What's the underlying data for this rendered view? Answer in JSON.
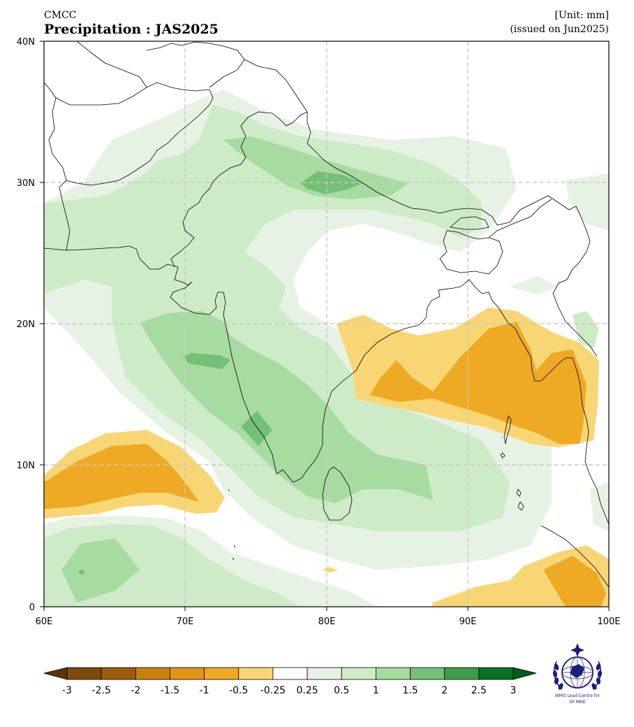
{
  "header": {
    "source": "CMCC",
    "title": "Precipitation : JAS2025",
    "unit": "[Unit: mm]",
    "issued": "(issued on Jun2025)"
  },
  "map": {
    "lon_range": [
      60,
      100
    ],
    "lat_range": [
      0,
      40
    ],
    "x_ticks": [
      "60E",
      "70E",
      "80E",
      "90E",
      "100E"
    ],
    "y_ticks": [
      "0",
      "10N",
      "20N",
      "30N",
      "40N"
    ],
    "gridlines": true
  },
  "colorbar": {
    "labels": [
      "-3",
      "-2.5",
      "-2",
      "-1.5",
      "-1",
      "-0.5",
      "-0.25",
      "0.25",
      "0.5",
      "1",
      "1.5",
      "2",
      "2.5",
      "3"
    ],
    "colors": [
      "#7b4a0c",
      "#9b5c0b",
      "#c8800f",
      "#e39417",
      "#eeaa24",
      "#f8d675",
      "#ffffff",
      "#e6f2e3",
      "#cdebc7",
      "#a7dca0",
      "#75c077",
      "#3e9c4b",
      "#0b7126"
    ],
    "under_color": "#5a3508",
    "over_color": "#045a1d"
  },
  "logo": {
    "line1": "WMO Lead Centre for",
    "line2": "SP MME"
  }
}
